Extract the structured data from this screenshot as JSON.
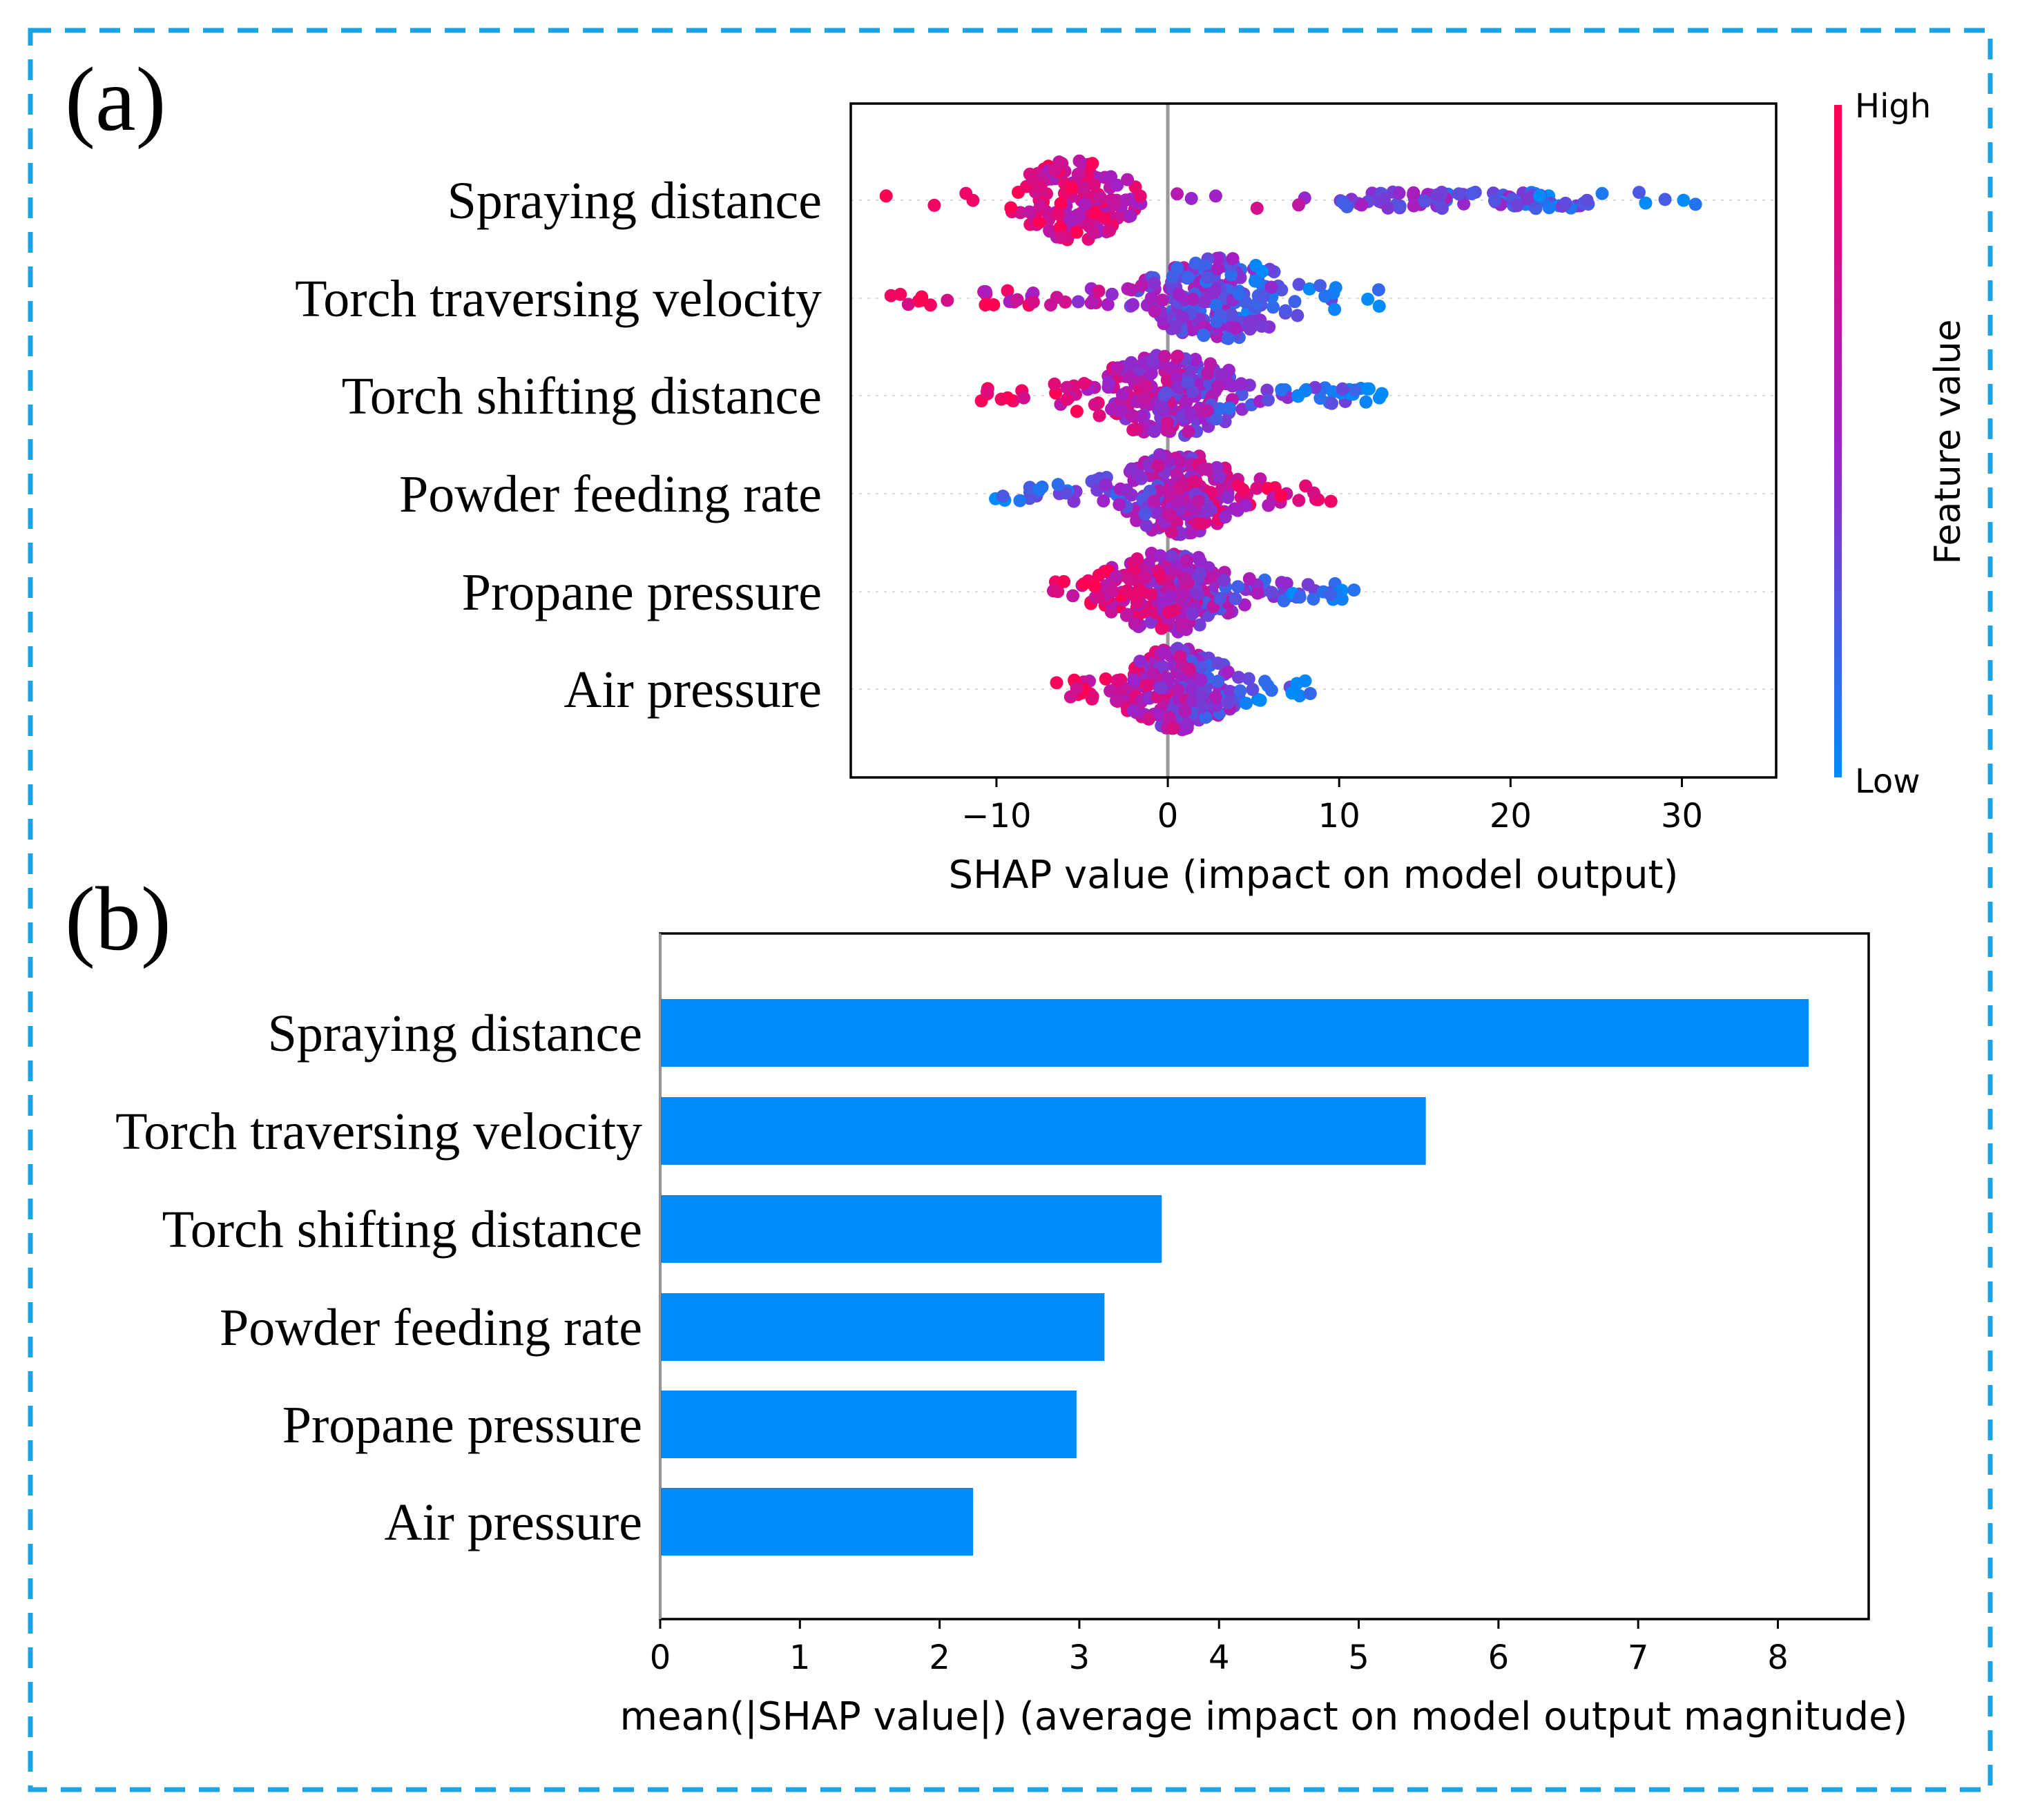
{
  "colors": {
    "frame": "#1ca3e3",
    "high": "#ff0052",
    "mid": "#a020c8",
    "low": "#008bfb",
    "bar": "#008bfb",
    "axis": "#000000",
    "zero_line": "#999999"
  },
  "chart_data": [
    {
      "panel_label": "(a)",
      "type": "scatter",
      "title": "",
      "xlabel": "SHAP value (impact on model output)",
      "xlim": [
        -18.5,
        35.5
      ],
      "xticks": [
        -10,
        0,
        10,
        20,
        30
      ],
      "xtick_labels": [
        "−10",
        "0",
        "10",
        "20",
        "30"
      ],
      "features": [
        "Spraying distance",
        "Torch traversing velocity",
        "Torch shifting distance",
        "Powder feeding rate ",
        "Propane pressure",
        "Air pressure"
      ],
      "colorbar": {
        "label": "Feature value",
        "high_label": "High",
        "low_label": "Low"
      },
      "point_distributions": [
        {
          "feature": "Spraying distance",
          "min": -16.5,
          "max": 33.0,
          "dense_center": -5.5,
          "dense_spread": 3.0,
          "high_side": "negative"
        },
        {
          "feature": "Torch traversing velocity",
          "min": -16.5,
          "max": 12.5,
          "dense_center": 3.0,
          "dense_spread": 4.0,
          "high_side": "negative"
        },
        {
          "feature": "Torch shifting distance",
          "min": -11.0,
          "max": 12.5,
          "dense_center": 0.0,
          "dense_spread": 4.0,
          "high_side": "negative"
        },
        {
          "feature": "Powder feeding rate ",
          "min": -10.5,
          "max": 10.0,
          "dense_center": 0.5,
          "dense_spread": 3.5,
          "high_side": "positive"
        },
        {
          "feature": "Propane pressure",
          "min": -7.0,
          "max": 11.0,
          "dense_center": 0.0,
          "dense_spread": 3.5,
          "high_side": "negative"
        },
        {
          "feature": "Air pressure",
          "min": -6.5,
          "max": 8.5,
          "dense_center": 0.5,
          "dense_spread": 3.0,
          "high_side": "negative"
        }
      ]
    },
    {
      "panel_label": "(b)",
      "type": "bar",
      "orientation": "horizontal",
      "title": "",
      "xlabel": "mean(|SHAP value|) (average impact on model output magnitude)",
      "xlim": [
        0,
        8.65
      ],
      "xticks": [
        0,
        1,
        2,
        3,
        4,
        5,
        6,
        7,
        8
      ],
      "categories": [
        "Spraying distance",
        "Torch traversing velocity",
        "Torch shifting distance",
        "Powder feeding rate ",
        "Propane pressure",
        "Air pressure"
      ],
      "values": [
        8.22,
        5.48,
        3.59,
        3.18,
        2.98,
        2.24
      ]
    }
  ]
}
